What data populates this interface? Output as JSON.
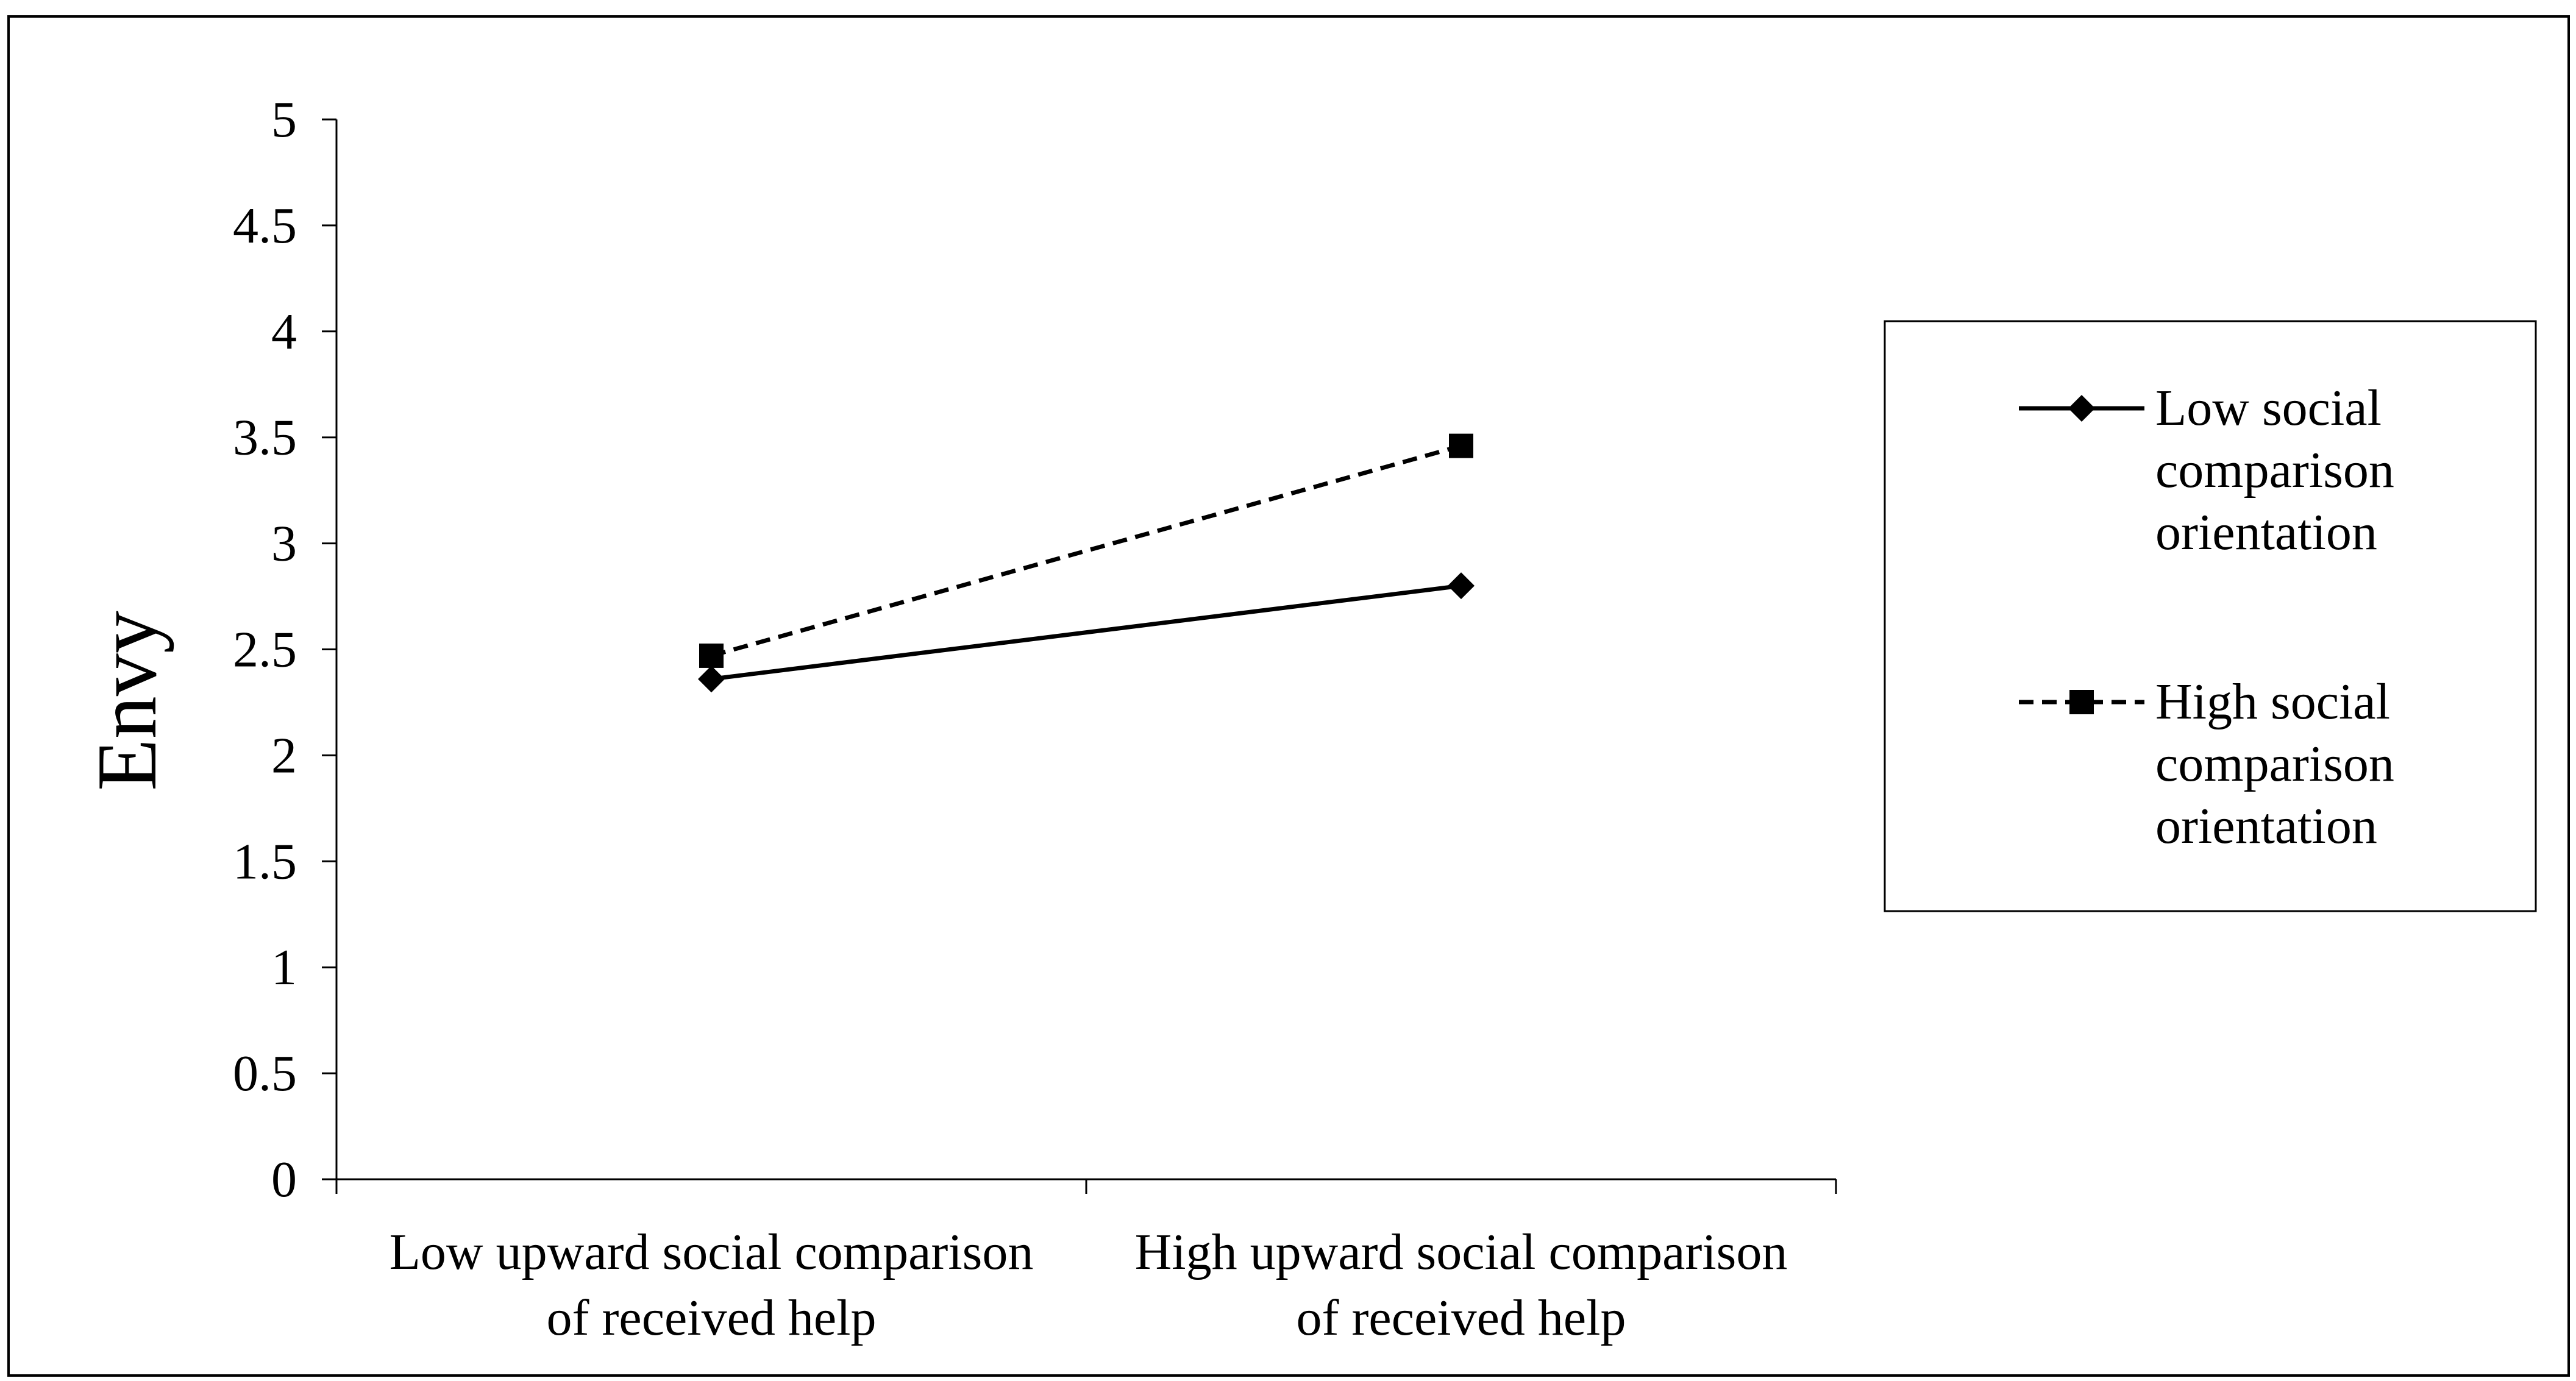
{
  "chart_data": {
    "type": "line",
    "title": "",
    "xlabel": "",
    "ylabel": "Envy",
    "ylim": [
      0,
      5
    ],
    "y_ticks": [
      "0",
      "0.5",
      "1",
      "1.5",
      "2",
      "2.5",
      "3",
      "3.5",
      "4",
      "4.5",
      "5"
    ],
    "categories": [
      [
        "Low upward social comparison",
        "of received help"
      ],
      [
        "High upward social comparison",
        "of received help"
      ]
    ],
    "series": [
      {
        "name": [
          "Low social",
          "comparison",
          "orientation"
        ],
        "values": [
          2.36,
          2.8
        ],
        "line_style": "solid",
        "marker": "diamond",
        "color": "#000000"
      },
      {
        "name": [
          "High social",
          "comparison",
          "orientation"
        ],
        "values": [
          2.47,
          3.46
        ],
        "line_style": "dashed",
        "marker": "square",
        "color": "#000000"
      }
    ],
    "grid": false,
    "legend_position": "right"
  }
}
